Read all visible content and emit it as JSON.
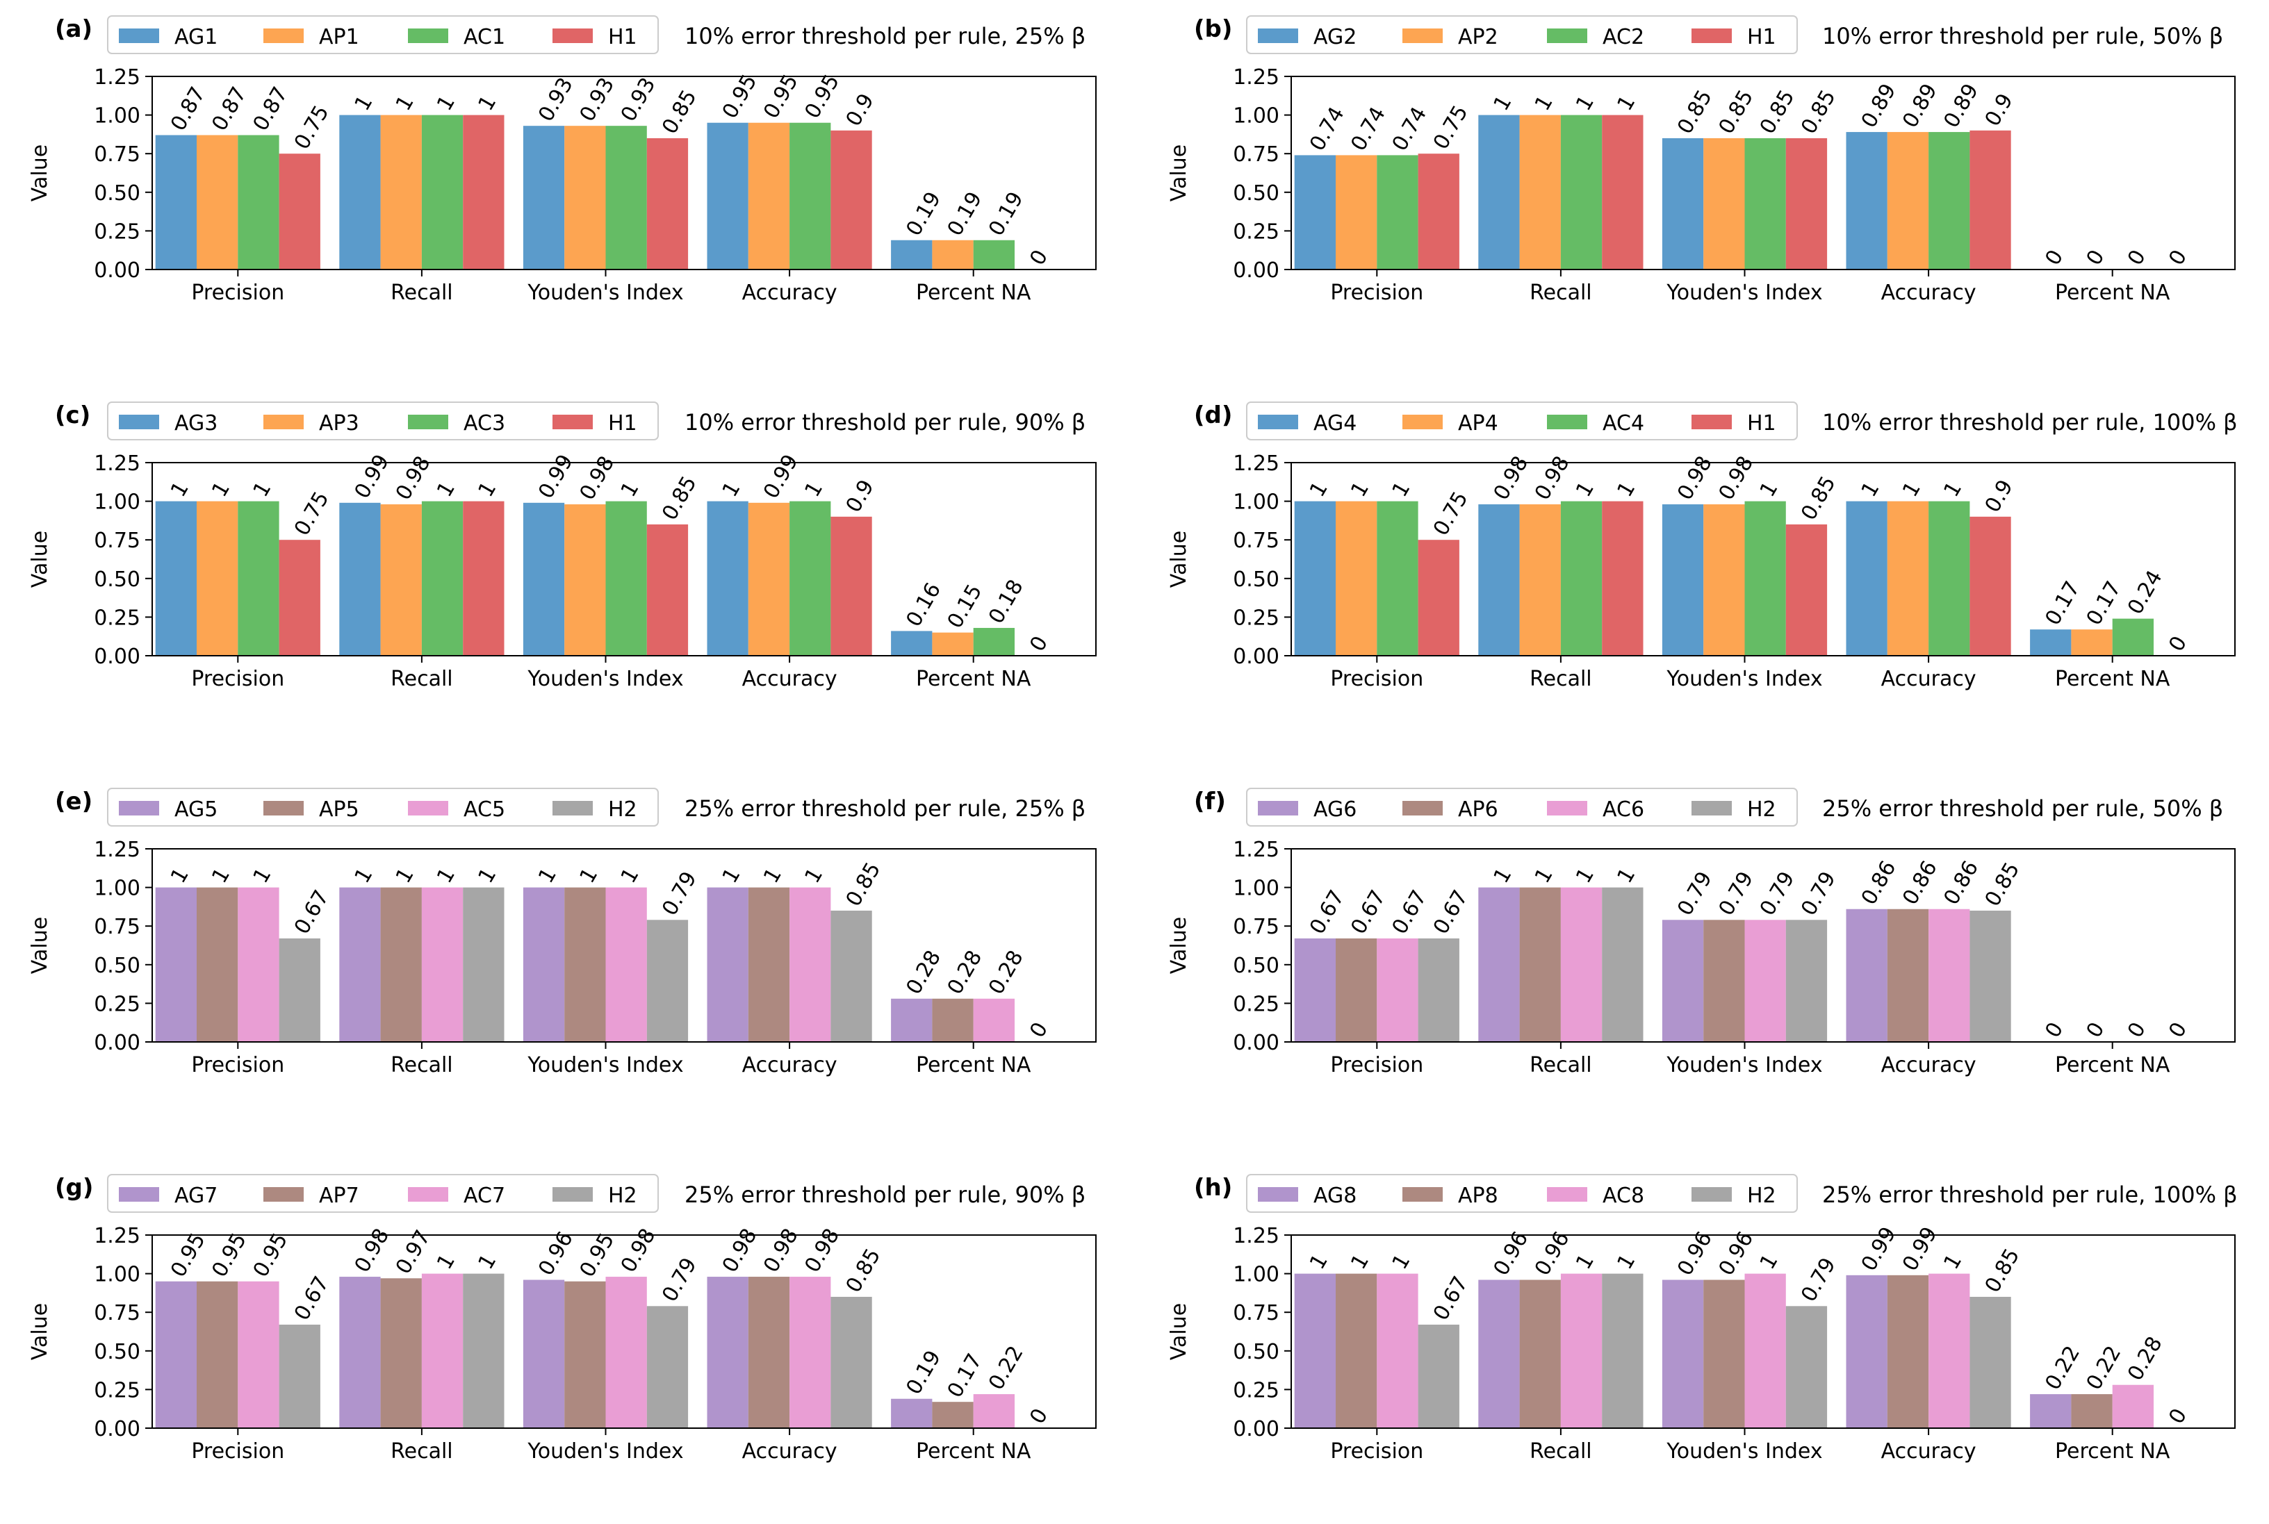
{
  "figure": {
    "metrics": [
      "Precision",
      "Recall",
      "Youden's Index",
      "Accuracy",
      "Percent NA"
    ],
    "ylabel": "Value",
    "yticks": [
      "0.00",
      "0.25",
      "0.50",
      "0.75",
      "1.00",
      "1.25"
    ],
    "ylim": [
      0,
      1.25
    ]
  },
  "chart_data": [
    {
      "type": "bar",
      "panel": "(a)",
      "title": "10% error threshold per rule, 25% β",
      "categories": [
        "Precision",
        "Recall",
        "Youden's Index",
        "Accuracy",
        "Percent NA"
      ],
      "xlabel": "",
      "ylabel": "Value",
      "ylim": [
        0,
        1.25
      ],
      "series": [
        {
          "name": "AG1",
          "color": "#5b9bcb",
          "values": [
            0.87,
            1.0,
            0.93,
            0.95,
            0.19
          ]
        },
        {
          "name": "AP1",
          "color": "#fda552",
          "values": [
            0.87,
            1.0,
            0.93,
            0.95,
            0.19
          ]
        },
        {
          "name": "AC1",
          "color": "#65bc65",
          "values": [
            0.87,
            1.0,
            0.93,
            0.95,
            0.19
          ]
        },
        {
          "name": "H1",
          "color": "#e06566",
          "values": [
            0.75,
            1.0,
            0.85,
            0.9,
            0.0
          ]
        }
      ]
    },
    {
      "type": "bar",
      "panel": "(b)",
      "title": "10% error threshold per rule, 50% β",
      "categories": [
        "Precision",
        "Recall",
        "Youden's Index",
        "Accuracy",
        "Percent NA"
      ],
      "xlabel": "",
      "ylabel": "Value",
      "ylim": [
        0,
        1.25
      ],
      "series": [
        {
          "name": "AG2",
          "color": "#5b9bcb",
          "values": [
            0.74,
            1.0,
            0.85,
            0.89,
            0.0
          ]
        },
        {
          "name": "AP2",
          "color": "#fda552",
          "values": [
            0.74,
            1.0,
            0.85,
            0.89,
            0.0
          ]
        },
        {
          "name": "AC2",
          "color": "#65bc65",
          "values": [
            0.74,
            1.0,
            0.85,
            0.89,
            0.0
          ]
        },
        {
          "name": "H1",
          "color": "#e06566",
          "values": [
            0.75,
            1.0,
            0.85,
            0.9,
            0.0
          ]
        }
      ]
    },
    {
      "type": "bar",
      "panel": "(c)",
      "title": "10% error threshold per rule, 90% β",
      "categories": [
        "Precision",
        "Recall",
        "Youden's Index",
        "Accuracy",
        "Percent NA"
      ],
      "xlabel": "",
      "ylabel": "Value",
      "ylim": [
        0,
        1.25
      ],
      "series": [
        {
          "name": "AG3",
          "color": "#5b9bcb",
          "values": [
            1.0,
            0.99,
            0.99,
            1.0,
            0.16
          ]
        },
        {
          "name": "AP3",
          "color": "#fda552",
          "values": [
            1.0,
            0.98,
            0.98,
            0.99,
            0.15
          ]
        },
        {
          "name": "AC3",
          "color": "#65bc65",
          "values": [
            1.0,
            1.0,
            1.0,
            1.0,
            0.18
          ]
        },
        {
          "name": "H1",
          "color": "#e06566",
          "values": [
            0.75,
            1.0,
            0.85,
            0.9,
            0.0
          ]
        }
      ]
    },
    {
      "type": "bar",
      "panel": "(d)",
      "title": "10% error threshold per rule, 100% β",
      "categories": [
        "Precision",
        "Recall",
        "Youden's Index",
        "Accuracy",
        "Percent NA"
      ],
      "xlabel": "",
      "ylabel": "Value",
      "ylim": [
        0,
        1.25
      ],
      "series": [
        {
          "name": "AG4",
          "color": "#5b9bcb",
          "values": [
            1.0,
            0.98,
            0.98,
            1.0,
            0.17
          ]
        },
        {
          "name": "AP4",
          "color": "#fda552",
          "values": [
            1.0,
            0.98,
            0.98,
            1.0,
            0.17
          ]
        },
        {
          "name": "AC4",
          "color": "#65bc65",
          "values": [
            1.0,
            1.0,
            1.0,
            1.0,
            0.24
          ]
        },
        {
          "name": "H1",
          "color": "#e06566",
          "values": [
            0.75,
            1.0,
            0.85,
            0.9,
            0.0
          ]
        }
      ]
    },
    {
      "type": "bar",
      "panel": "(e)",
      "title": "25% error threshold per rule, 25% β",
      "categories": [
        "Precision",
        "Recall",
        "Youden's Index",
        "Accuracy",
        "Percent NA"
      ],
      "xlabel": "",
      "ylabel": "Value",
      "ylim": [
        0,
        1.25
      ],
      "series": [
        {
          "name": "AG5",
          "color": "#b094cc",
          "values": [
            1.0,
            1.0,
            1.0,
            1.0,
            0.28
          ]
        },
        {
          "name": "AP5",
          "color": "#ad8980",
          "values": [
            1.0,
            1.0,
            1.0,
            1.0,
            0.28
          ]
        },
        {
          "name": "AC5",
          "color": "#e99ed4",
          "values": [
            1.0,
            1.0,
            1.0,
            1.0,
            0.28
          ]
        },
        {
          "name": "H2",
          "color": "#a6a6a6",
          "values": [
            0.67,
            1.0,
            0.79,
            0.85,
            0.0
          ]
        }
      ]
    },
    {
      "type": "bar",
      "panel": "(f)",
      "title": "25% error threshold per rule, 50% β",
      "categories": [
        "Precision",
        "Recall",
        "Youden's Index",
        "Accuracy",
        "Percent NA"
      ],
      "xlabel": "",
      "ylabel": "Value",
      "ylim": [
        0,
        1.25
      ],
      "series": [
        {
          "name": "AG6",
          "color": "#b094cc",
          "values": [
            0.67,
            1.0,
            0.79,
            0.86,
            0.0
          ]
        },
        {
          "name": "AP6",
          "color": "#ad8980",
          "values": [
            0.67,
            1.0,
            0.79,
            0.86,
            0.0
          ]
        },
        {
          "name": "AC6",
          "color": "#e99ed4",
          "values": [
            0.67,
            1.0,
            0.79,
            0.86,
            0.0
          ]
        },
        {
          "name": "H2",
          "color": "#a6a6a6",
          "values": [
            0.67,
            1.0,
            0.79,
            0.85,
            0.0
          ]
        }
      ]
    },
    {
      "type": "bar",
      "panel": "(g)",
      "title": "25% error threshold per rule, 90% β",
      "categories": [
        "Precision",
        "Recall",
        "Youden's Index",
        "Accuracy",
        "Percent NA"
      ],
      "xlabel": "",
      "ylabel": "Value",
      "ylim": [
        0,
        1.25
      ],
      "series": [
        {
          "name": "AG7",
          "color": "#b094cc",
          "values": [
            0.95,
            0.98,
            0.96,
            0.98,
            0.19
          ]
        },
        {
          "name": "AP7",
          "color": "#ad8980",
          "values": [
            0.95,
            0.97,
            0.95,
            0.98,
            0.17
          ]
        },
        {
          "name": "AC7",
          "color": "#e99ed4",
          "values": [
            0.95,
            1.0,
            0.98,
            0.98,
            0.22
          ]
        },
        {
          "name": "H2",
          "color": "#a6a6a6",
          "values": [
            0.67,
            1.0,
            0.79,
            0.85,
            0.0
          ]
        }
      ]
    },
    {
      "type": "bar",
      "panel": "(h)",
      "title": "25% error threshold per rule, 100% β",
      "categories": [
        "Precision",
        "Recall",
        "Youden's Index",
        "Accuracy",
        "Percent NA"
      ],
      "xlabel": "",
      "ylabel": "Value",
      "ylim": [
        0,
        1.25
      ],
      "series": [
        {
          "name": "AG8",
          "color": "#b094cc",
          "values": [
            1.0,
            0.96,
            0.96,
            0.99,
            0.22
          ]
        },
        {
          "name": "AP8",
          "color": "#ad8980",
          "values": [
            1.0,
            0.96,
            0.96,
            0.99,
            0.22
          ]
        },
        {
          "name": "AC8",
          "color": "#e99ed4",
          "values": [
            1.0,
            1.0,
            1.0,
            1.0,
            0.28
          ]
        },
        {
          "name": "H2",
          "color": "#a6a6a6",
          "values": [
            0.67,
            1.0,
            0.79,
            0.85,
            0.0
          ]
        }
      ]
    }
  ]
}
